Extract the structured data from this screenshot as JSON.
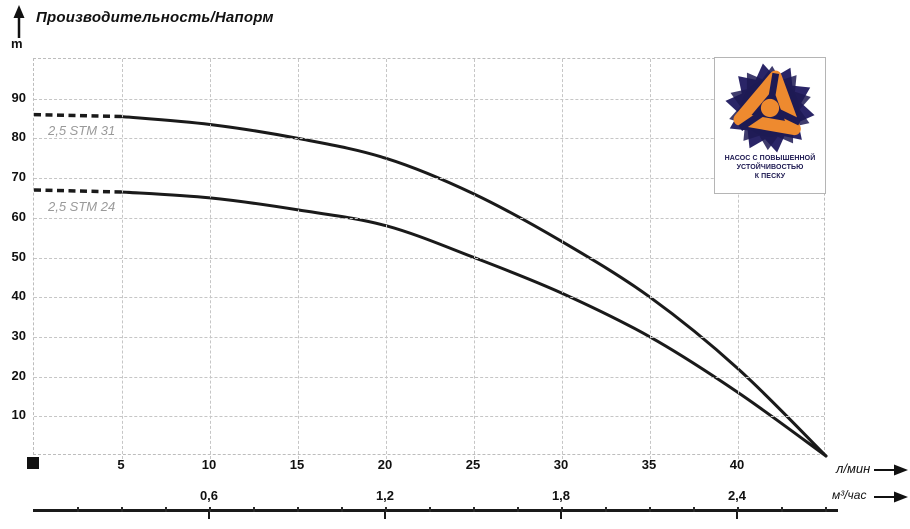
{
  "header": {
    "title": "Производительность/Напорм",
    "y_unit_label": "m"
  },
  "axis": {
    "primary_unit": "л/мин",
    "secondary_unit": "м³/час"
  },
  "badge": {
    "lines": [
      "НАСОС С ПОВЫШЕННОЙ",
      "УСТОЙЧИВОСТЬЮ",
      "К ПЕСКУ"
    ]
  },
  "colors": {
    "curve": "#1a1a1a",
    "grid": "#c6c6c6",
    "series_label": "#9a9a9a",
    "badge_navy": "#2a2567",
    "badge_navy_dark": "#1d1a54",
    "badge_orange": "#ee8a2f",
    "badge_text": "#1c1850"
  },
  "chart_data": {
    "type": "line",
    "title": "Производительность/Напорм",
    "ylabel": "m",
    "xlabel_primary": "л/мин",
    "xlabel_secondary": "м³/час",
    "ylim": [
      0,
      100
    ],
    "xlim_l_min": [
      0,
      45
    ],
    "grid": "dotted",
    "legend_position": "inline-left-of-curves",
    "y_ticks": [
      90,
      80,
      70,
      60,
      50,
      40,
      30,
      20,
      10
    ],
    "x_ticks_l_min": [
      5,
      10,
      15,
      20,
      25,
      30,
      35,
      40
    ],
    "x_ticks_m3_hour": [
      {
        "label": "0,6",
        "at_l_min": 10
      },
      {
        "label": "1,2",
        "at_l_min": 20
      },
      {
        "label": "1,8",
        "at_l_min": 30
      },
      {
        "label": "2,4",
        "at_l_min": 40
      }
    ],
    "series": [
      {
        "name": "2,5 STM 31",
        "style": "dashed from 0 to 5 л/мин, solid after",
        "x_l_min": [
          0,
          5,
          10,
          15,
          20,
          25,
          30,
          35,
          40,
          45
        ],
        "head_m": [
          86,
          85.5,
          83.5,
          80,
          75,
          66,
          54,
          40,
          22,
          0
        ]
      },
      {
        "name": "2,5 STM 24",
        "style": "dashed from 0 to 5 л/мин, solid after",
        "x_l_min": [
          0,
          5,
          10,
          15,
          20,
          25,
          30,
          35,
          40,
          45
        ],
        "head_m": [
          67,
          66.5,
          65,
          62,
          58,
          50,
          41,
          30,
          16,
          0
        ]
      }
    ]
  }
}
